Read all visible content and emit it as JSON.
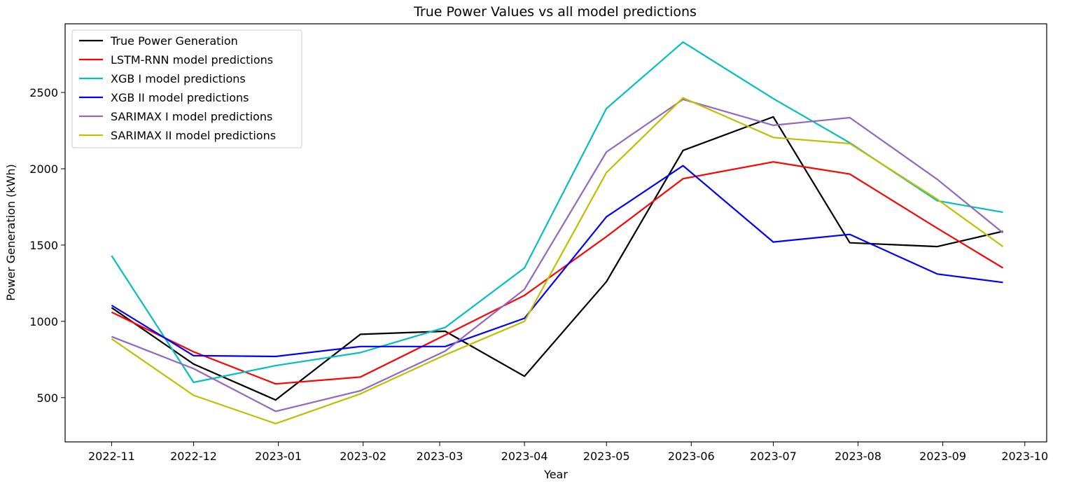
{
  "chart_data": {
    "type": "line",
    "title": "True Power Values vs all model predictions",
    "xlabel": "Year",
    "ylabel": "Power Generation (kWh)",
    "x": [
      "2022-11-01",
      "2022-12-01",
      "2022-12-31",
      "2023-01-31",
      "2023-03-03",
      "2023-04-01",
      "2023-05-01",
      "2023-05-29",
      "2023-07-01",
      "2023-07-29",
      "2023-08-30",
      "2023-09-23"
    ],
    "xticks": [
      "2022-11",
      "2022-12",
      "2023-01",
      "2023-02",
      "2023-03",
      "2023-04",
      "2023-05",
      "2023-06",
      "2023-07",
      "2023-08",
      "2023-09",
      "2023-10"
    ],
    "xtick_dates": [
      "2022-11-01",
      "2022-12-01",
      "2023-01-01",
      "2023-02-01",
      "2023-03-01",
      "2023-04-01",
      "2023-05-01",
      "2023-06-01",
      "2023-07-01",
      "2023-08-01",
      "2023-09-01",
      "2023-10-01"
    ],
    "xlim": [
      "2022-10-15",
      "2023-10-09"
    ],
    "yticks": [
      500,
      1000,
      1500,
      2000,
      2500
    ],
    "ylim": [
      210,
      2950
    ],
    "grid": false,
    "legend_position": "upper-left",
    "series": [
      {
        "name": "True Power Generation",
        "color": "#000000",
        "values": [
          1090,
          720,
          485,
          915,
          935,
          640,
          1260,
          2120,
          2340,
          1515,
          1490,
          1590
        ]
      },
      {
        "name": "LSTM-RNN model predictions",
        "color": "#ff0000",
        "values": [
          1060,
          800,
          590,
          635,
          910,
          1170,
          1555,
          1935,
          2045,
          1965,
          1610,
          1350
        ]
      },
      {
        "name": "XGB I model predictions",
        "color": "#00bfbf",
        "values": [
          1430,
          600,
          710,
          795,
          960,
          1350,
          2395,
          2830,
          2460,
          2170,
          1790,
          1715
        ]
      },
      {
        "name": "XGB II model predictions",
        "color": "#0000ff",
        "values": [
          1105,
          775,
          770,
          835,
          835,
          1020,
          1685,
          2020,
          1520,
          1570,
          1310,
          1255
        ]
      },
      {
        "name": "SARIMAX I model predictions",
        "color": "#9467bd",
        "values": [
          900,
          690,
          410,
          545,
          805,
          1210,
          2110,
          2455,
          2285,
          2335,
          1930,
          1580
        ]
      },
      {
        "name": "SARIMAX II model predictions",
        "color": "#bfbf00",
        "values": [
          885,
          515,
          330,
          525,
          780,
          1000,
          1975,
          2465,
          2205,
          2165,
          1800,
          1490
        ]
      }
    ]
  }
}
